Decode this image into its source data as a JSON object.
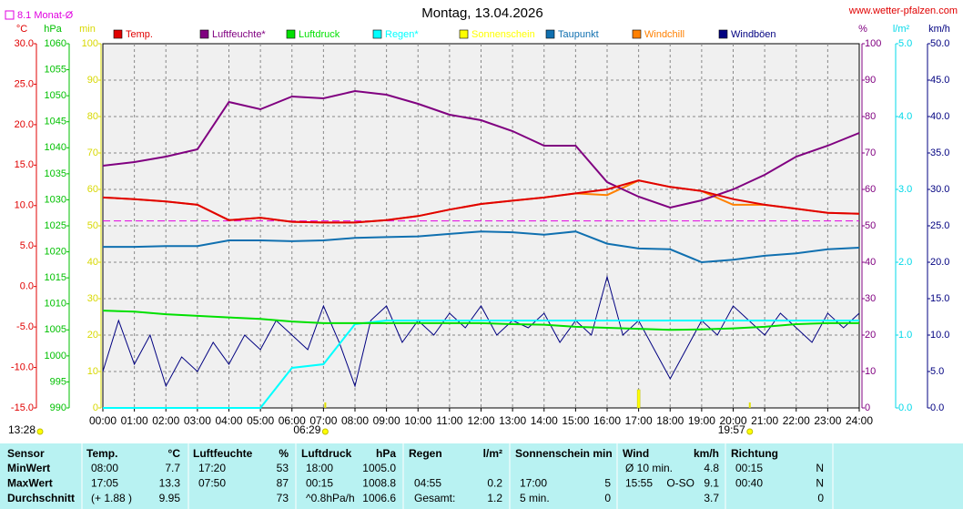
{
  "chart_data": {
    "type": "line",
    "title": "Montag, 13.04.2026",
    "source": "www.wetter-pfalzen.com",
    "monthly_avg_label": "8.1 Monat-Ø",
    "monthly_avg": 8.1,
    "monthly_avg_color": "#e000e0",
    "grid": true,
    "xlim": [
      0,
      24
    ],
    "xticks": [
      {
        "value": 0,
        "label": "00:00"
      },
      {
        "value": 1,
        "label": "01:00"
      },
      {
        "value": 2,
        "label": "02:00"
      },
      {
        "value": 3,
        "label": "03:00"
      },
      {
        "value": 4,
        "label": "04:00"
      },
      {
        "value": 5,
        "label": "05:00"
      },
      {
        "value": 6,
        "label": "06:00"
      },
      {
        "value": 7,
        "label": "07:00"
      },
      {
        "value": 8,
        "label": "08:00"
      },
      {
        "value": 9,
        "label": "09:00"
      },
      {
        "value": 10,
        "label": "10:00"
      },
      {
        "value": 11,
        "label": "11:00"
      },
      {
        "value": 12,
        "label": "12:00"
      },
      {
        "value": 13,
        "label": "13:00"
      },
      {
        "value": 14,
        "label": "14:00"
      },
      {
        "value": 15,
        "label": "15:00"
      },
      {
        "value": 16,
        "label": "16:00"
      },
      {
        "value": 17,
        "label": "17:00"
      },
      {
        "value": 18,
        "label": "18:00"
      },
      {
        "value": 19,
        "label": "19:00"
      },
      {
        "value": 20,
        "label": "20:00"
      },
      {
        "value": 21,
        "label": "21:00"
      },
      {
        "value": 22,
        "label": "22:00"
      },
      {
        "value": 23,
        "label": "23:00"
      },
      {
        "value": 24,
        "label": "24:00"
      }
    ],
    "axes": [
      {
        "label": "°C",
        "side": "left",
        "color": "#e00000",
        "ylim": [
          -15,
          30
        ],
        "yticks": [
          {
            "value": 30,
            "label": "30.0"
          },
          {
            "value": 25,
            "label": "25.0"
          },
          {
            "value": 20,
            "label": "20.0"
          },
          {
            "value": 15,
            "label": "15.0"
          },
          {
            "value": 10,
            "label": "10.0"
          },
          {
            "value": 5,
            "label": "5.0"
          },
          {
            "value": 0,
            "label": "0.0"
          },
          {
            "value": -5,
            "label": "-5.0"
          },
          {
            "value": -10,
            "label": "-10.0"
          },
          {
            "value": -15,
            "label": "-15.0"
          }
        ]
      },
      {
        "label": "hPa",
        "side": "left",
        "color": "#00c000",
        "ylim": [
          990,
          1060
        ],
        "yticks": [
          1060,
          1055,
          1050,
          1045,
          1040,
          1035,
          1030,
          1025,
          1020,
          1015,
          1010,
          1005,
          1000,
          995,
          990
        ]
      },
      {
        "label": "min",
        "side": "left",
        "color": "#d8d800",
        "ylim": [
          0,
          100
        ],
        "yticks": [
          100,
          90,
          80,
          70,
          60,
          50,
          40,
          30,
          20,
          10,
          0
        ]
      },
      {
        "label": "%",
        "side": "right",
        "color": "#800080",
        "ylim": [
          0,
          100
        ],
        "yticks": [
          100,
          90,
          80,
          70,
          60,
          50,
          40,
          30,
          20,
          10,
          0
        ]
      },
      {
        "label": "l/m²",
        "side": "right",
        "color": "#00d8e8",
        "ylim": [
          0,
          5
        ],
        "yticks": [
          {
            "value": 5,
            "label": "5.0"
          },
          {
            "value": 4,
            "label": "4.0"
          },
          {
            "value": 3,
            "label": "3.0"
          },
          {
            "value": 2,
            "label": "2.0"
          },
          {
            "value": 1,
            "label": "1.0"
          },
          {
            "value": 0,
            "label": "0.0"
          }
        ]
      },
      {
        "label": "km/h",
        "side": "right",
        "color": "#000080",
        "ylim": [
          0,
          50
        ],
        "yticks": [
          {
            "value": 50,
            "label": "50.0"
          },
          {
            "value": 45,
            "label": "45.0"
          },
          {
            "value": 40,
            "label": "40.0"
          },
          {
            "value": 35,
            "label": "35.0"
          },
          {
            "value": 30,
            "label": "30.0"
          },
          {
            "value": 25,
            "label": "25.0"
          },
          {
            "value": 20,
            "label": "20.0"
          },
          {
            "value": 15,
            "label": "15.0"
          },
          {
            "value": 10,
            "label": "10.0"
          },
          {
            "value": 5,
            "label": "5.0"
          },
          {
            "value": 0,
            "label": "0.0"
          }
        ]
      }
    ],
    "x": [
      0,
      1,
      2,
      3,
      4,
      5,
      6,
      7,
      8,
      9,
      10,
      11,
      12,
      13,
      14,
      15,
      16,
      17,
      18,
      19,
      20,
      21,
      22,
      23,
      24
    ],
    "series": [
      {
        "name": "Temp.",
        "color": "#e00000",
        "axis": 0,
        "values": [
          11.0,
          10.8,
          10.5,
          10.1,
          8.2,
          8.5,
          8.0,
          7.9,
          7.9,
          8.2,
          8.7,
          9.5,
          10.2,
          10.6,
          11.0,
          11.5,
          12.0,
          13.1,
          12.3,
          11.8,
          10.8,
          10.1,
          9.6,
          9.1,
          9.0
        ]
      },
      {
        "name": "Luftfeuchte*",
        "color": "#800080",
        "axis": 3,
        "values": [
          66.5,
          67.5,
          69,
          71,
          84,
          82,
          85.5,
          85,
          87,
          86,
          83.5,
          80.5,
          79,
          76,
          72,
          72,
          62,
          58,
          55,
          57,
          60,
          64,
          69,
          72,
          75.5
        ]
      },
      {
        "name": "Luftdruck",
        "color": "#00e000",
        "axis": 1,
        "values": [
          1008.7,
          1008.5,
          1008.0,
          1007.7,
          1007.4,
          1007.1,
          1006.6,
          1006.3,
          1006.3,
          1006.3,
          1006.3,
          1006.3,
          1006.3,
          1006.1,
          1006.0,
          1005.6,
          1005.4,
          1005.2,
          1005.0,
          1005.1,
          1005.3,
          1005.6,
          1006.1,
          1006.3,
          1006.3
        ]
      },
      {
        "name": "Regen*",
        "color": "#00ffff",
        "axis": 4,
        "values": [
          0,
          0,
          0,
          0,
          0,
          0,
          0.55,
          0.6,
          1.15,
          1.2,
          1.2,
          1.2,
          1.2,
          1.2,
          1.2,
          1.2,
          1.2,
          1.2,
          1.2,
          1.2,
          1.2,
          1.2,
          1.2,
          1.2,
          1.2
        ]
      },
      {
        "name": "Sonnenschein",
        "color": "#ffff00",
        "axis": 2,
        "kind": "bar",
        "x": [
          17
        ],
        "values": [
          5
        ]
      },
      {
        "name": "Taupunkt",
        "color": "#1070b0",
        "axis": 0,
        "values": [
          4.9,
          4.9,
          5.0,
          5.0,
          5.7,
          5.7,
          5.6,
          5.7,
          6.0,
          6.1,
          6.2,
          6.5,
          6.8,
          6.7,
          6.4,
          6.8,
          5.3,
          4.7,
          4.6,
          3.0,
          3.3,
          3.8,
          4.1,
          4.6,
          4.8
        ]
      },
      {
        "name": "Windchill",
        "color": "#ff8000",
        "axis": 0,
        "values": [
          11.0,
          10.8,
          10.5,
          10.1,
          8.2,
          8.5,
          8.0,
          7.9,
          7.9,
          8.2,
          8.7,
          9.5,
          10.2,
          10.6,
          11.0,
          11.5,
          11.3,
          13.1,
          12.3,
          11.8,
          10.1,
          10.1,
          9.6,
          9.1,
          9.0
        ]
      },
      {
        "name": "Windböen",
        "color": "#000080",
        "axis": 5,
        "x": [
          0,
          0.5,
          1,
          1.5,
          2,
          2.5,
          3,
          3.5,
          4,
          4.5,
          5,
          5.5,
          6,
          6.5,
          7,
          7.5,
          8,
          8.5,
          9,
          9.5,
          10,
          10.5,
          11,
          11.5,
          12,
          12.5,
          13,
          13.5,
          14,
          14.5,
          15,
          15.5,
          16,
          16.5,
          17,
          17.5,
          18,
          18.5,
          19,
          19.5,
          20,
          20.5,
          21,
          21.5,
          22,
          22.5,
          23,
          23.5,
          24
        ],
        "values": [
          5,
          12,
          6,
          10,
          3,
          7,
          5,
          9,
          6,
          10,
          8,
          12,
          10,
          8,
          14,
          9,
          3,
          12,
          14,
          9,
          12,
          10,
          13,
          11,
          14,
          10,
          12,
          11,
          13,
          9,
          12,
          10,
          18,
          10,
          12,
          8,
          4,
          8,
          12,
          10,
          14,
          12,
          10,
          13,
          11,
          9,
          13,
          11,
          13
        ]
      }
    ],
    "annotations": [
      {
        "text": "13:28",
        "x": 0
      },
      {
        "text": "06:29",
        "x": 6.48
      },
      {
        "text": "19:57",
        "x": 19.95
      }
    ]
  },
  "table": {
    "header": [
      "Sensor",
      "Temp.",
      "°C",
      "Luftfeuchte",
      "%",
      "Luftdruck",
      "hPa",
      "Regen",
      "l/m²",
      "Sonnenschein min",
      "Wind",
      "km/h",
      "Richtung"
    ],
    "rows": [
      [
        "MinWert",
        "08:00",
        "7.7",
        "17:20",
        "53",
        "18:00",
        "1005.0",
        null,
        null,
        null,
        null,
        "Ø 10 min.",
        null,
        "4.8",
        "00:15",
        "N"
      ],
      [
        "MaxWert",
        "17:05",
        "13.3",
        "07:50",
        "87",
        "00:15",
        "1008.8",
        "04:55",
        "0.2",
        "17:00",
        "5",
        "15:55",
        "O-SO",
        "9.1",
        "00:40",
        "N"
      ],
      [
        "Durchschnitt",
        "(+ 1.88 )",
        "9.95",
        null,
        "73",
        "^0.8hPa/h",
        "1006.6",
        "Gesamt:",
        "1.2",
        "5 min.",
        "0",
        null,
        null,
        "3.7",
        null,
        "0"
      ]
    ]
  }
}
